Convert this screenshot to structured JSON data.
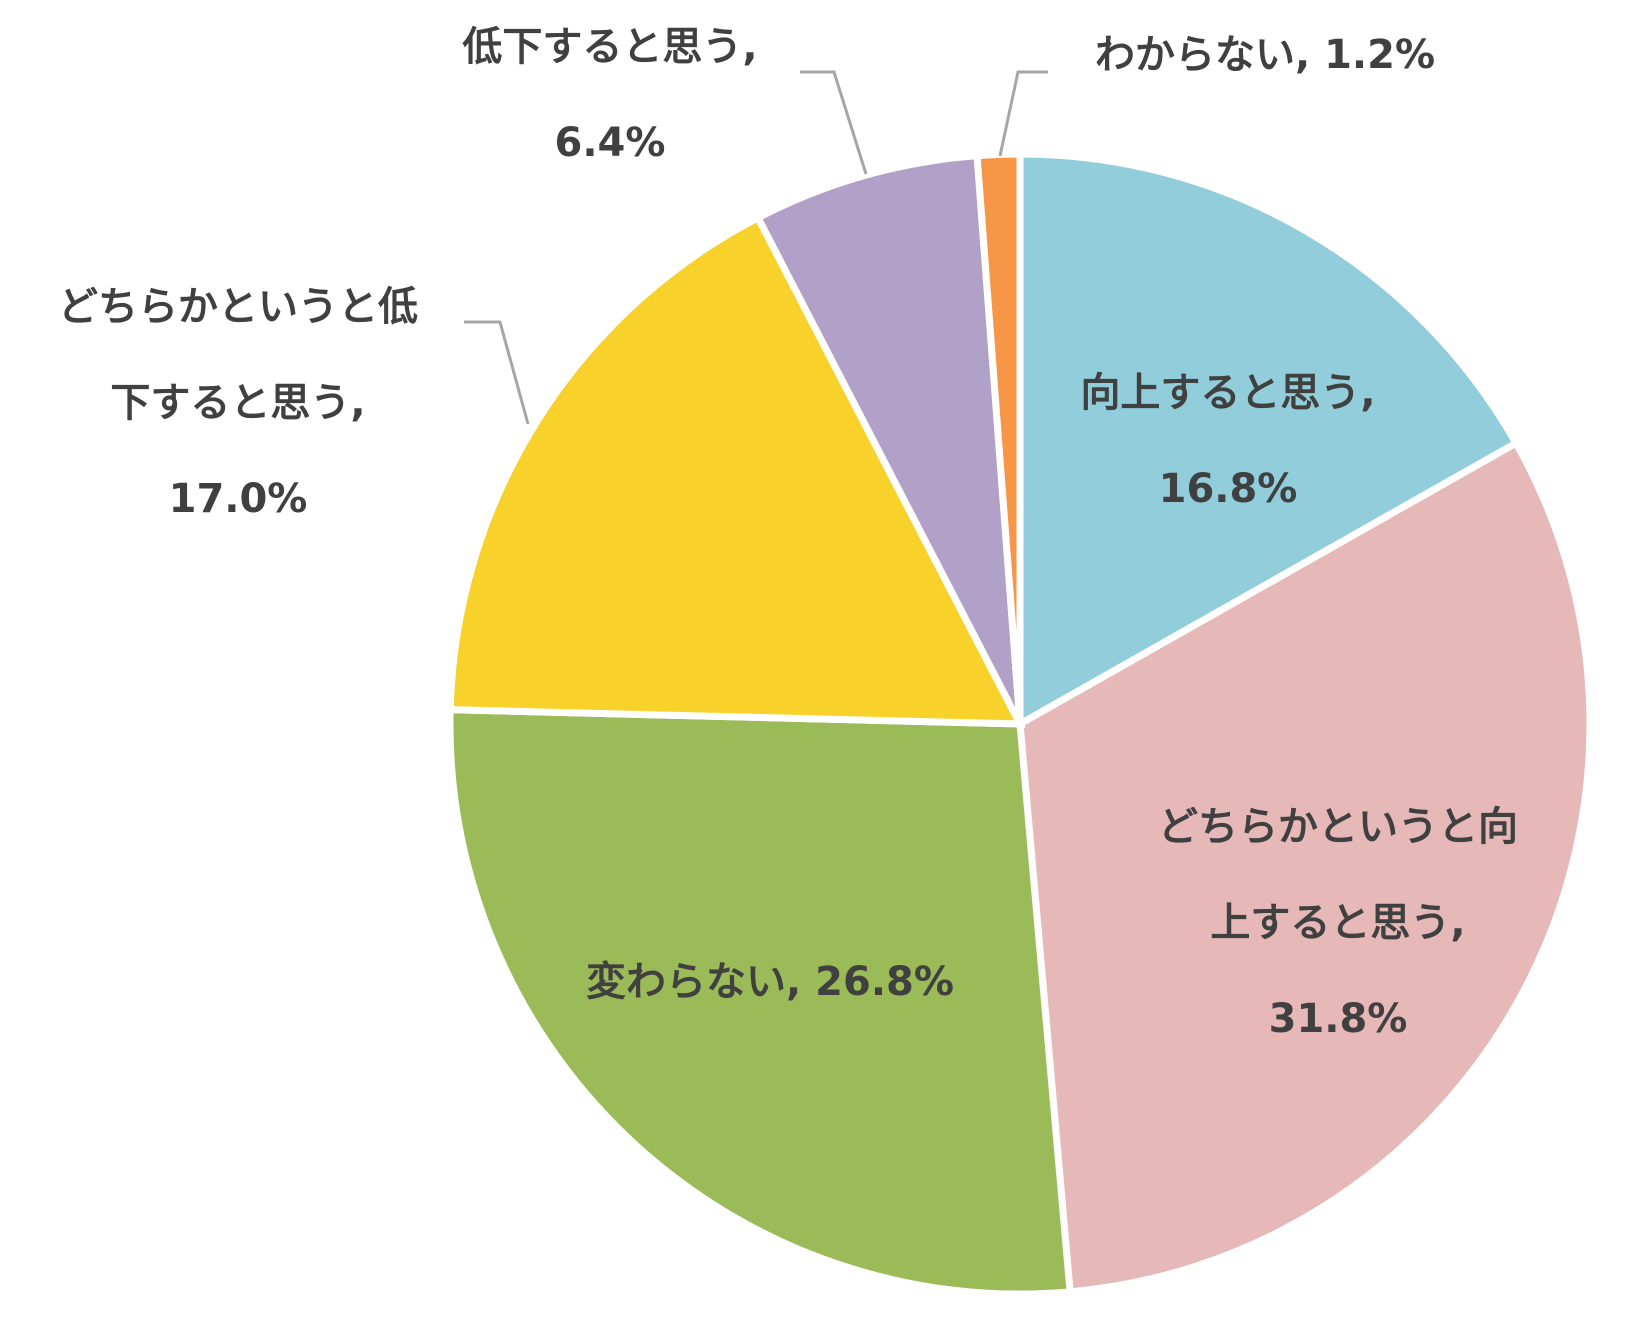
{
  "chart_data": {
    "type": "pie",
    "title": "",
    "categories": [
      "向上すると思う",
      "どちらかというと向上すると思う",
      "変わらない",
      "どちらかというと低下すると思う",
      "低下すると思う",
      "わからない"
    ],
    "values": [
      16.8,
      31.8,
      26.8,
      17.0,
      6.4,
      1.2
    ],
    "unit": "%",
    "colors": [
      "#92cddc",
      "#e6b9b8",
      "#9bbb59",
      "#f9d12b",
      "#b1a0c7",
      "#f79646"
    ],
    "start_angle": "12 o'clock",
    "direction": "clockwise",
    "legend": "none",
    "data_labels": [
      {
        "lines": [
          "向上すると思う,",
          "16.8%"
        ],
        "placement": "inside"
      },
      {
        "lines": [
          "どちらかというと向",
          "上すると思う,",
          "31.8%"
        ],
        "placement": "inside"
      },
      {
        "lines": [
          "変わらない, 26.8%"
        ],
        "placement": "inside"
      },
      {
        "lines": [
          "どちらかというと低",
          "下すると思う,",
          "17.0%"
        ],
        "placement": "outside with leader line"
      },
      {
        "lines": [
          "低下すると思う,",
          "6.4%"
        ],
        "placement": "outside with leader line"
      },
      {
        "lines": [
          "わからない, 1.2%"
        ],
        "placement": "outside with leader line"
      }
    ]
  }
}
